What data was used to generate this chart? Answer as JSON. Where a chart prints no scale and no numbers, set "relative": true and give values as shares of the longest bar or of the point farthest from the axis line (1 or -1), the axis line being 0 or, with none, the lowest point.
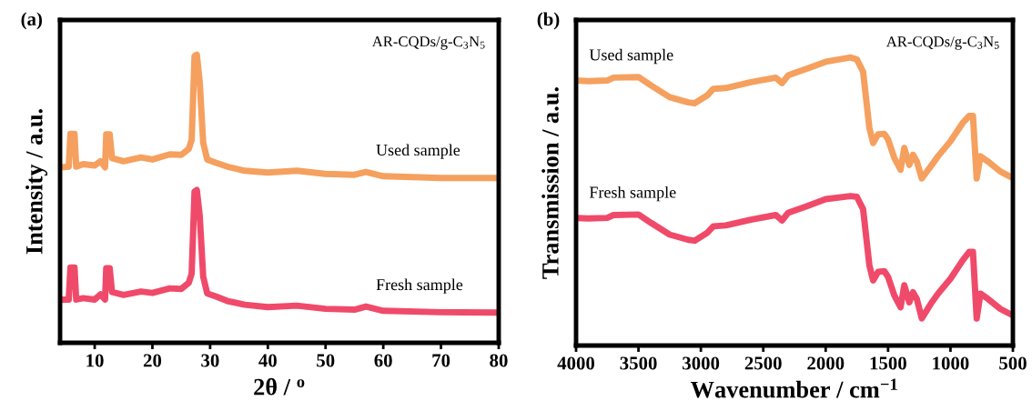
{
  "chart_data": [
    {
      "type": "line",
      "title": "(a)",
      "xlabel": "2θ / $^{o}$",
      "ylabel": "Intensity / a.u.",
      "relative": true,
      "xlim": [
        4,
        80
      ],
      "xticks": [
        10,
        20,
        30,
        40,
        50,
        60,
        70,
        80
      ],
      "annotations": [
        "AR-CQDs/g-C$_{3}$N$_{5}$"
      ],
      "legend": false,
      "grid": false,
      "x": [
        4.2,
        5.5,
        5.8,
        6.5,
        6.8,
        8,
        10,
        11,
        11.8,
        12.0,
        12.6,
        13,
        15,
        18,
        20,
        23,
        25,
        26.3,
        26.8,
        27.3,
        27.7,
        28.2,
        28.8,
        29.5,
        31,
        33,
        36,
        40,
        45,
        50,
        55,
        57,
        60,
        70,
        80
      ],
      "series": [
        {
          "name": "Used sample",
          "color": "#f5a05e",
          "values": [
            0.609,
            0.611,
            0.725,
            0.725,
            0.611,
            0.62,
            0.615,
            0.63,
            0.609,
            0.723,
            0.723,
            0.641,
            0.63,
            0.643,
            0.636,
            0.654,
            0.652,
            0.673,
            0.704,
            0.995,
            1.0,
            0.905,
            0.694,
            0.636,
            0.625,
            0.611,
            0.597,
            0.591,
            0.597,
            0.586,
            0.583,
            0.593,
            0.578,
            0.572,
            0.572
          ]
        },
        {
          "name": "Fresh sample",
          "color": "#f04a6a",
          "values": [
            0.15,
            0.15,
            0.261,
            0.261,
            0.15,
            0.155,
            0.15,
            0.168,
            0.15,
            0.259,
            0.259,
            0.176,
            0.166,
            0.178,
            0.173,
            0.189,
            0.187,
            0.208,
            0.24,
            0.525,
            0.53,
            0.44,
            0.229,
            0.171,
            0.161,
            0.145,
            0.132,
            0.124,
            0.129,
            0.118,
            0.115,
            0.126,
            0.111,
            0.106,
            0.105
          ]
        }
      ]
    },
    {
      "type": "line",
      "title": "(b)",
      "xlabel": "Wavenumber / cm$^{−1}$",
      "ylabel": "Transmission / a.u.",
      "relative": true,
      "xlim": [
        4000,
        500
      ],
      "xticks": [
        4000,
        3500,
        3000,
        2500,
        2000,
        1500,
        1000,
        500
      ],
      "annotations": [
        "AR-CQDs/g-C$_{3}$N$_{5}$"
      ],
      "legend": false,
      "grid": false,
      "x": [
        4000,
        3900,
        3750,
        3700,
        3500,
        3400,
        3250,
        3100,
        3050,
        2950,
        2900,
        2800,
        2600,
        2400,
        2350,
        2300,
        2150,
        2000,
        1800,
        1750,
        1700,
        1650,
        1620,
        1580,
        1530,
        1500,
        1450,
        1400,
        1370,
        1330,
        1300,
        1270,
        1230,
        1150,
        1100,
        1000,
        900,
        850,
        820,
        790,
        760,
        700,
        600,
        520,
        500
      ],
      "series": [
        {
          "name": "Used sample",
          "color": "#f5a05e",
          "values": [
            0.92,
            0.918,
            0.92,
            0.93,
            0.932,
            0.903,
            0.862,
            0.844,
            0.841,
            0.868,
            0.891,
            0.894,
            0.914,
            0.93,
            0.911,
            0.938,
            0.961,
            0.985,
            1.0,
            0.993,
            0.95,
            0.756,
            0.703,
            0.733,
            0.735,
            0.715,
            0.651,
            0.61,
            0.686,
            0.627,
            0.662,
            0.639,
            0.58,
            0.627,
            0.657,
            0.709,
            0.774,
            0.797,
            0.797,
            0.58,
            0.657,
            0.639,
            0.604,
            0.586,
            0.583
          ]
        },
        {
          "name": "Fresh sample",
          "color": "#f04a6a",
          "values": [
            0.443,
            0.441,
            0.443,
            0.453,
            0.455,
            0.426,
            0.385,
            0.367,
            0.364,
            0.391,
            0.414,
            0.417,
            0.437,
            0.453,
            0.434,
            0.461,
            0.484,
            0.508,
            0.519,
            0.516,
            0.473,
            0.279,
            0.226,
            0.256,
            0.258,
            0.238,
            0.174,
            0.133,
            0.209,
            0.15,
            0.185,
            0.162,
            0.094,
            0.15,
            0.18,
            0.232,
            0.297,
            0.325,
            0.325,
            0.094,
            0.18,
            0.162,
            0.127,
            0.109,
            0.106
          ]
        }
      ]
    }
  ]
}
